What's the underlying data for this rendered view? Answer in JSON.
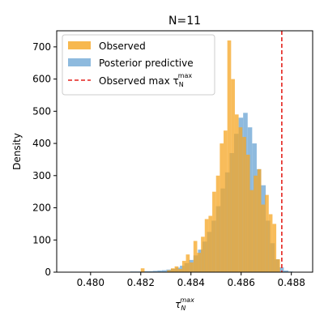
{
  "chart_data": {
    "type": "bar",
    "title": "N=11",
    "xlabel": "τ_N^max",
    "ylabel": "Density",
    "xlim": [
      0.47865,
      0.48885
    ],
    "ylim": [
      0,
      750
    ],
    "xticks": [
      0.48,
      0.482,
      0.484,
      0.486,
      0.488
    ],
    "xtick_labels": [
      "0.480",
      "0.482",
      "0.484",
      "0.486",
      "0.488"
    ],
    "yticks": [
      0,
      100,
      200,
      300,
      400,
      500,
      600,
      700
    ],
    "ytick_labels": [
      "0",
      "100",
      "200",
      "300",
      "400",
      "500",
      "600",
      "700"
    ],
    "grid": false,
    "legend_position": "upper-left",
    "observed_max_value": 0.48762,
    "series": [
      {
        "name": "Observed",
        "color": "#f5a623",
        "opacity": 0.75,
        "bin_edges": [
          0.482,
          0.48215,
          0.4823,
          0.48245,
          0.4826,
          0.48275,
          0.4829,
          0.48305,
          0.4832,
          0.48335,
          0.4835,
          0.48365,
          0.4838,
          0.48395,
          0.4841,
          0.48425,
          0.4844,
          0.48455,
          0.4847,
          0.48485,
          0.485,
          0.48515,
          0.4853,
          0.48545,
          0.4856,
          0.48575,
          0.4859,
          0.48605,
          0.4862,
          0.48635,
          0.4865,
          0.48665,
          0.4868,
          0.48695,
          0.4871,
          0.48725,
          0.4874,
          0.48755,
          0.4877
        ],
        "values": [
          12,
          0,
          0,
          0,
          0,
          0,
          0,
          6,
          12,
          18,
          10,
          35,
          55,
          30,
          97,
          60,
          110,
          165,
          175,
          250,
          300,
          400,
          440,
          720,
          600,
          490,
          450,
          420,
          365,
          255,
          300,
          320,
          210,
          240,
          180,
          150,
          40,
          0
        ]
      },
      {
        "name": "Posterior predictive",
        "color": "#7aaed8",
        "opacity": 0.85,
        "bin_edges": [
          0.4796,
          0.47978,
          0.47996,
          0.48014,
          0.48032,
          0.4805,
          0.48068,
          0.48086,
          0.48104,
          0.48122,
          0.4814,
          0.48158,
          0.48176,
          0.48194,
          0.48212,
          0.4823,
          0.48248,
          0.48266,
          0.48284,
          0.48302,
          0.4832,
          0.48338,
          0.48356,
          0.48374,
          0.48392,
          0.4841,
          0.48428,
          0.48446,
          0.48464,
          0.48482,
          0.485,
          0.48518,
          0.48536,
          0.48554,
          0.48572,
          0.4859,
          0.48608,
          0.48626,
          0.48644,
          0.48662,
          0.4868,
          0.48698,
          0.48716,
          0.48734,
          0.48752,
          0.4877,
          0.48788,
          0.48806
        ],
        "values": [
          1,
          1,
          1,
          1,
          1,
          1,
          1,
          1,
          1,
          1,
          1,
          2,
          2,
          2,
          3,
          3,
          4,
          5,
          6,
          8,
          10,
          14,
          20,
          28,
          38,
          52,
          70,
          95,
          125,
          160,
          205,
          260,
          310,
          370,
          430,
          480,
          495,
          450,
          400,
          320,
          270,
          160,
          90,
          40,
          15,
          5,
          2
        ]
      }
    ],
    "annotations": [
      {
        "name": "Observed max τ_N^max",
        "type": "vline",
        "color": "#e4211c",
        "style": "dashed",
        "x": 0.48762
      }
    ]
  },
  "legend": {
    "observed_label": "Observed",
    "posterior_label": "Posterior predictive",
    "vline_label_main": "Observed max τ",
    "vline_label_sup": "max",
    "vline_label_sub": "N"
  },
  "axis_label": {
    "x_main": "τ",
    "x_sup": "max",
    "x_sub": "N"
  }
}
